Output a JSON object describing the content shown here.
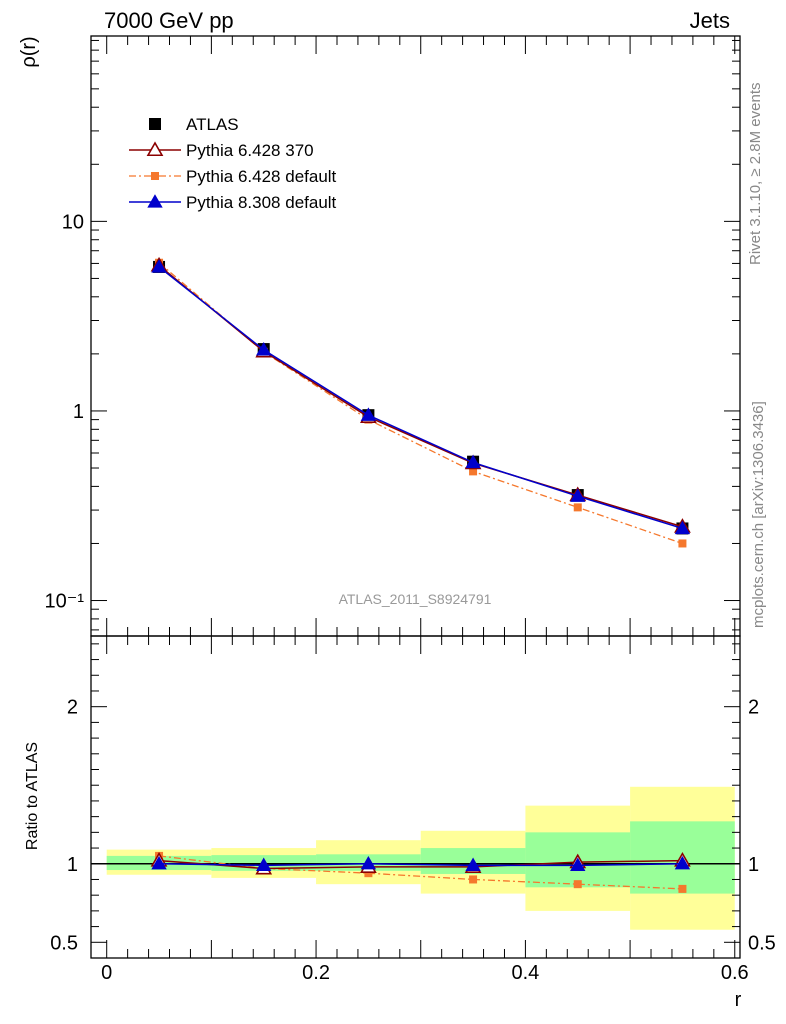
{
  "header": {
    "energy_label": "7000 GeV pp",
    "process_label": "Jets"
  },
  "side_labels": {
    "rivet_version": "Rivet 3.1.10, ≥ 2.8M events",
    "source": "mcplots.cern.ch [arXiv:1306.3436]"
  },
  "watermark": "ATLAS_2011_S8924791",
  "colors": {
    "atlas": "#000000",
    "pythia6_370": "#8b0000",
    "pythia6_default": "#f5782d",
    "pythia8_default": "#0000cc",
    "band_outer": "#ffff99",
    "band_inner": "#99ff99"
  },
  "legend": [
    {
      "label": "ATLAS",
      "marker": "filled-square",
      "color": "#000000"
    },
    {
      "label": "Pythia 6.428 370",
      "marker": "open-triangle",
      "color": "#8b0000",
      "line": "solid"
    },
    {
      "label": "Pythia 6.428 default",
      "marker": "filled-square",
      "color": "#f5782d",
      "line": "dash-dot"
    },
    {
      "label": "Pythia 8.308 default",
      "marker": "filled-triangle",
      "color": "#0000cc",
      "line": "solid"
    }
  ],
  "chart_data": [
    {
      "type": "line",
      "panel": "main",
      "ylabel": "ρ(r)",
      "yscale": "log",
      "xlim": [
        -0.015,
        0.605
      ],
      "ylim": [
        0.065,
        95
      ],
      "ytick_labels": [
        "10⁻¹",
        "1",
        "10"
      ],
      "x": [
        0.05,
        0.15,
        0.25,
        0.35,
        0.45,
        0.55
      ],
      "series": [
        {
          "name": "ATLAS",
          "values": [
            5.75,
            2.12,
            0.95,
            0.54,
            0.36,
            0.24
          ]
        },
        {
          "name": "Pythia 6.428 370",
          "values": [
            5.85,
            2.06,
            0.93,
            0.53,
            0.36,
            0.245
          ]
        },
        {
          "name": "Pythia 6.428 default",
          "values": [
            6.05,
            2.05,
            0.9,
            0.48,
            0.31,
            0.2
          ]
        },
        {
          "name": "Pythia 8.308 default",
          "values": [
            5.75,
            2.1,
            0.95,
            0.535,
            0.355,
            0.24
          ]
        }
      ]
    },
    {
      "type": "line",
      "panel": "ratio",
      "xlabel": "r",
      "ylabel": "Ratio to ATLAS",
      "xlim": [
        -0.015,
        0.605
      ],
      "ylim": [
        0.4,
        2.45
      ],
      "xtick_labels": [
        "0",
        "0.2",
        "0.4",
        "0.6"
      ],
      "ytick_labels": [
        "0.5",
        "1",
        "2"
      ],
      "x": [
        0.05,
        0.15,
        0.25,
        0.35,
        0.45,
        0.55
      ],
      "bin_edges": [
        0,
        0.1,
        0.2,
        0.3,
        0.4,
        0.5,
        0.6
      ],
      "band_outer": [
        [
          0.93,
          1.09
        ],
        [
          0.91,
          1.1
        ],
        [
          0.87,
          1.15
        ],
        [
          0.81,
          1.21
        ],
        [
          0.7,
          1.37
        ],
        [
          0.58,
          1.49
        ]
      ],
      "band_inner": [
        [
          0.96,
          1.05
        ],
        [
          0.955,
          1.055
        ],
        [
          0.955,
          1.06
        ],
        [
          0.935,
          1.1
        ],
        [
          0.85,
          1.2
        ],
        [
          0.81,
          1.27
        ]
      ],
      "series": [
        {
          "name": "Pythia 6.428 370",
          "values": [
            1.02,
            0.97,
            0.98,
            0.98,
            1.01,
            1.02
          ]
        },
        {
          "name": "Pythia 6.428 default",
          "values": [
            1.05,
            0.97,
            0.94,
            0.9,
            0.87,
            0.84
          ]
        },
        {
          "name": "Pythia 8.308 default",
          "values": [
            1.0,
            0.99,
            1.0,
            0.99,
            0.99,
            1.0
          ]
        }
      ]
    }
  ]
}
